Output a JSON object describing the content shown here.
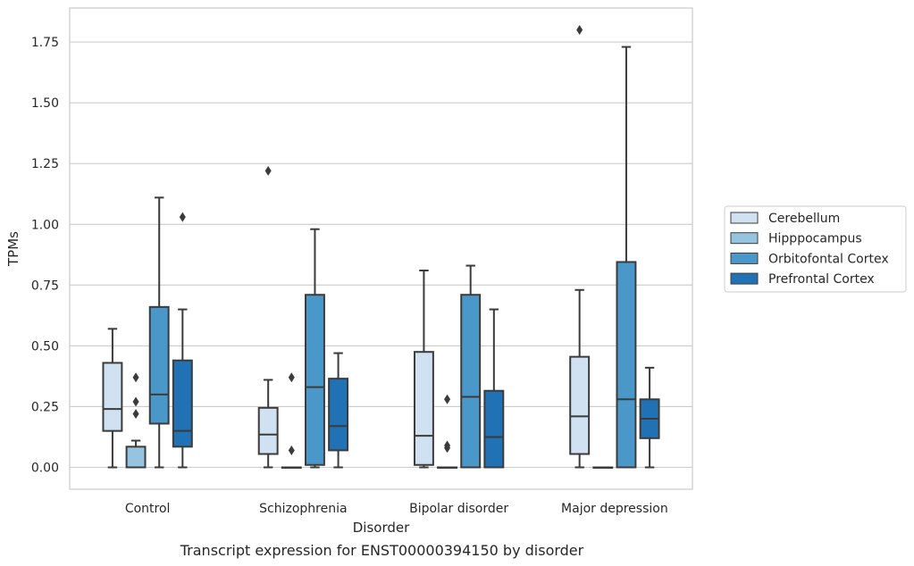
{
  "chart_data": {
    "type": "box",
    "title": "",
    "caption": "Transcript expression for ENST00000394150 by disorder",
    "xlabel": "Disorder",
    "ylabel": "TPMs",
    "ylim": [
      -0.09,
      1.89
    ],
    "yticks": [
      0.0,
      0.25,
      0.5,
      0.75,
      1.0,
      1.25,
      1.5,
      1.75
    ],
    "ytick_labels": [
      "0.00",
      "0.25",
      "0.50",
      "0.75",
      "1.00",
      "1.25",
      "1.50",
      "1.75"
    ],
    "grid": "horizontal",
    "legend_position": "right",
    "categories": [
      "Control",
      "Schizophrenia",
      "Bipolar disorder",
      "Major depression"
    ],
    "series": [
      {
        "name": "Cerebellum",
        "color": "#d0e1f2",
        "boxes": [
          {
            "whislo": 0.0,
            "q1": 0.15,
            "med": 0.24,
            "q3": 0.43,
            "whishi": 0.57,
            "fliers": []
          },
          {
            "whislo": 0.0,
            "q1": 0.055,
            "med": 0.135,
            "q3": 0.245,
            "whishi": 0.36,
            "fliers": [
              1.22
            ]
          },
          {
            "whislo": 0.0,
            "q1": 0.01,
            "med": 0.13,
            "q3": 0.475,
            "whishi": 0.81,
            "fliers": []
          },
          {
            "whislo": 0.0,
            "q1": 0.055,
            "med": 0.21,
            "q3": 0.455,
            "whishi": 0.73,
            "fliers": [
              1.8
            ]
          }
        ]
      },
      {
        "name": "Hipppocampus",
        "color": "#94c4df",
        "boxes": [
          {
            "whislo": 0.0,
            "q1": 0.0,
            "med": 0.0,
            "q3": 0.085,
            "whishi": 0.11,
            "fliers": [
              0.22,
              0.27,
              0.37
            ]
          },
          {
            "whislo": 0.0,
            "q1": 0.0,
            "med": 0.0,
            "q3": 0.0,
            "whishi": 0.0,
            "fliers": [
              0.07,
              0.37
            ]
          },
          {
            "whislo": 0.0,
            "q1": 0.0,
            "med": 0.0,
            "q3": 0.0,
            "whishi": 0.0,
            "fliers": [
              0.08,
              0.09,
              0.28
            ]
          },
          {
            "whislo": 0.0,
            "q1": 0.0,
            "med": 0.0,
            "q3": 0.0,
            "whishi": 0.0,
            "fliers": []
          }
        ]
      },
      {
        "name": "Orbitofontal Cortex",
        "color": "#4a98c9",
        "boxes": [
          {
            "whislo": 0.0,
            "q1": 0.18,
            "med": 0.3,
            "q3": 0.66,
            "whishi": 1.11,
            "fliers": []
          },
          {
            "whislo": 0.0,
            "q1": 0.01,
            "med": 0.33,
            "q3": 0.71,
            "whishi": 0.98,
            "fliers": []
          },
          {
            "whislo": 0.0,
            "q1": 0.0,
            "med": 0.29,
            "q3": 0.71,
            "whishi": 0.83,
            "fliers": []
          },
          {
            "whislo": 0.0,
            "q1": 0.0,
            "med": 0.28,
            "q3": 0.845,
            "whishi": 1.73,
            "fliers": []
          }
        ]
      },
      {
        "name": "Prefrontal Cortex",
        "color": "#2171b5",
        "boxes": [
          {
            "whislo": 0.0,
            "q1": 0.085,
            "med": 0.15,
            "q3": 0.44,
            "whishi": 0.65,
            "fliers": [
              1.03
            ]
          },
          {
            "whislo": 0.0,
            "q1": 0.07,
            "med": 0.17,
            "q3": 0.365,
            "whishi": 0.47,
            "fliers": []
          },
          {
            "whislo": 0.0,
            "q1": 0.0,
            "med": 0.125,
            "q3": 0.315,
            "whishi": 0.65,
            "fliers": []
          },
          {
            "whislo": 0.0,
            "q1": 0.12,
            "med": 0.2,
            "q3": 0.28,
            "whishi": 0.41,
            "fliers": []
          }
        ]
      }
    ]
  }
}
